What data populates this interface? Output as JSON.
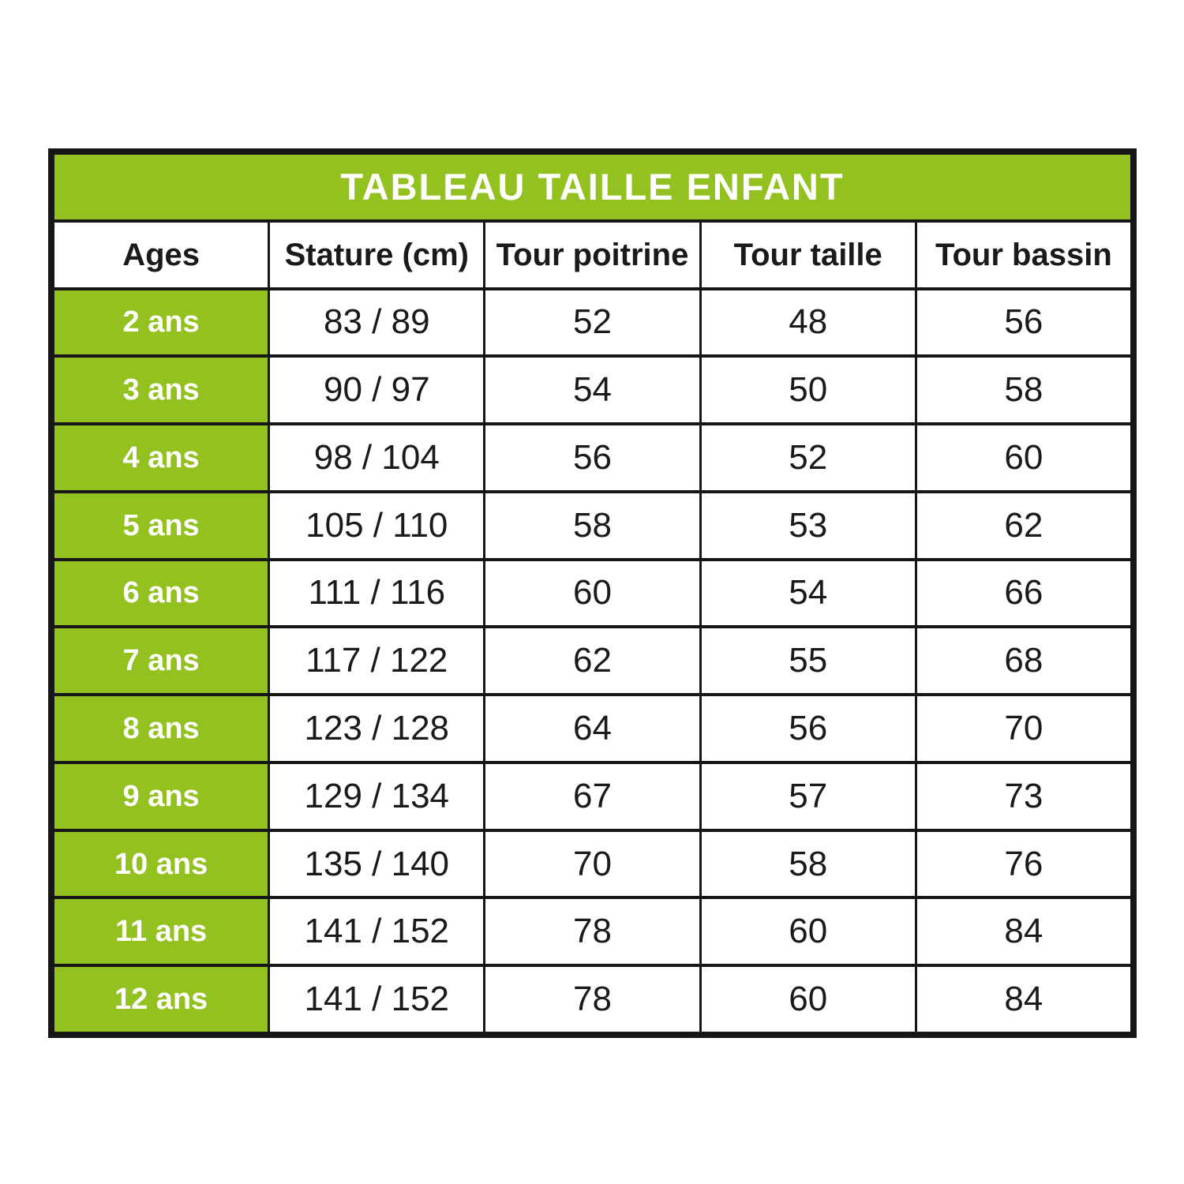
{
  "colors": {
    "green": "#93c11f",
    "border": "#161616",
    "text": "#1a1a1a",
    "white_text": "#ffffff"
  },
  "chart_data": {
    "type": "table",
    "title": "TABLEAU TAILLE ENFANT",
    "columns": [
      "Ages",
      "Stature (cm)",
      "Tour poitrine",
      "Tour taille",
      "Tour bassin"
    ],
    "rows": [
      [
        "2 ans",
        "83 / 89",
        "52",
        "48",
        "56"
      ],
      [
        "3 ans",
        "90 / 97",
        "54",
        "50",
        "58"
      ],
      [
        "4 ans",
        "98 / 104",
        "56",
        "52",
        "60"
      ],
      [
        "5 ans",
        "105 / 110",
        "58",
        "53",
        "62"
      ],
      [
        "6 ans",
        "111 / 116",
        "60",
        "54",
        "66"
      ],
      [
        "7 ans",
        "117 / 122",
        "62",
        "55",
        "68"
      ],
      [
        "8 ans",
        "123 / 128",
        "64",
        "56",
        "70"
      ],
      [
        "9 ans",
        "129 / 134",
        "67",
        "57",
        "73"
      ],
      [
        "10 ans",
        "135 / 140",
        "70",
        "58",
        "76"
      ],
      [
        "11 ans",
        "141 / 152",
        "78",
        "60",
        "84"
      ],
      [
        "12 ans",
        "141 / 152",
        "78",
        "60",
        "84"
      ]
    ]
  }
}
